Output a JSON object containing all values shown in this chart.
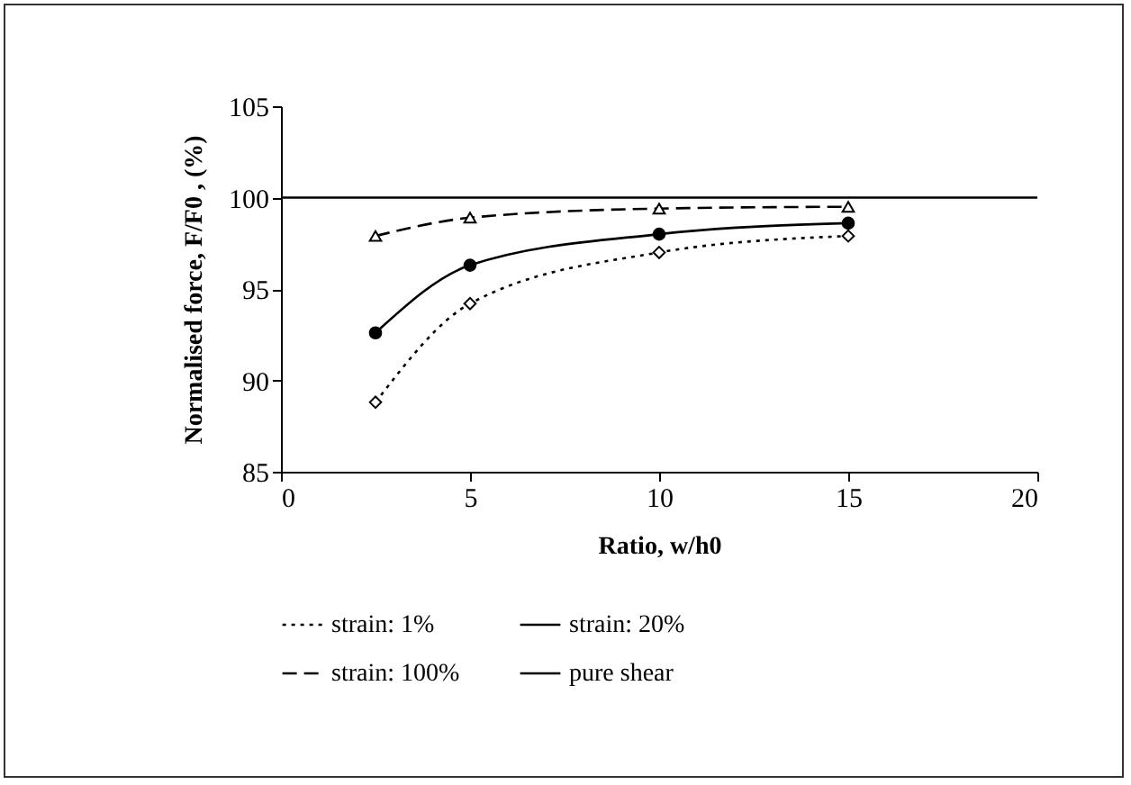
{
  "chart_data": {
    "type": "line",
    "xlabel": "Ratio, w/h0",
    "ylabel": "Normalised force, F/F0 , (%)",
    "xlim": [
      0,
      20
    ],
    "xticks": [
      0,
      5,
      10,
      15,
      20
    ],
    "ylim": [
      85,
      105
    ],
    "yticks": [
      85,
      90,
      95,
      100,
      105
    ],
    "grid": false,
    "legend": "bottom",
    "series": [
      {
        "name": "strain: 1%",
        "color": "#000000",
        "marker": "diamond",
        "line_style": "dotted",
        "x": [
          2.5,
          5,
          10,
          15
        ],
        "values": [
          88.8,
          94.2,
          97.0,
          97.9
        ]
      },
      {
        "name": "strain: 20%",
        "color": "#000000",
        "marker": "circle",
        "line_style": "solid",
        "x": [
          2.5,
          5,
          10,
          15
        ],
        "values": [
          92.6,
          96.3,
          98.0,
          98.6
        ]
      },
      {
        "name": "strain: 100%",
        "color": "#000000",
        "marker": "triangle",
        "line_style": "dashed",
        "x": [
          2.5,
          5,
          10,
          15
        ],
        "values": [
          97.9,
          98.9,
          99.4,
          99.5
        ]
      },
      {
        "name": "pure shear",
        "color": "#000000",
        "marker": "none",
        "line_style": "solid",
        "x": [
          0,
          20
        ],
        "values": [
          100,
          100
        ]
      }
    ]
  }
}
